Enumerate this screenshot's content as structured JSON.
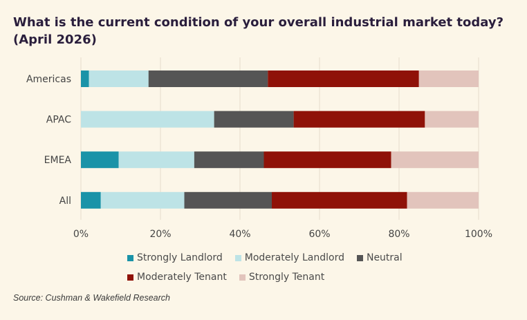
{
  "title": "What is the current condition of your overall industrial market today? (April 2026)",
  "source": "Source: Cushman & Wakefield Research",
  "chart_data": {
    "type": "bar",
    "orientation": "horizontal",
    "stacked": true,
    "categories": [
      "Americas",
      "APAC",
      "EMEA",
      "All"
    ],
    "series": [
      {
        "name": "Strongly Landlord",
        "color": "#1a93a8",
        "values": [
          2,
          0,
          9.5,
          5
        ]
      },
      {
        "name": "Moderately Landlord",
        "color": "#bde3e6",
        "values": [
          15,
          33.5,
          19,
          21
        ]
      },
      {
        "name": "Neutral",
        "color": "#555555",
        "values": [
          30,
          20,
          17.5,
          22
        ]
      },
      {
        "name": "Moderately Tenant",
        "color": "#8f1208",
        "values": [
          38,
          33,
          32,
          34
        ]
      },
      {
        "name": "Strongly Tenant",
        "color": "#e2c4bc",
        "values": [
          15,
          13.5,
          22,
          18
        ]
      }
    ],
    "xlim": [
      0,
      100
    ],
    "xticks": [
      "0%",
      "20%",
      "40%",
      "60%",
      "80%",
      "100%"
    ],
    "grid": true,
    "legend_position": "bottom"
  }
}
